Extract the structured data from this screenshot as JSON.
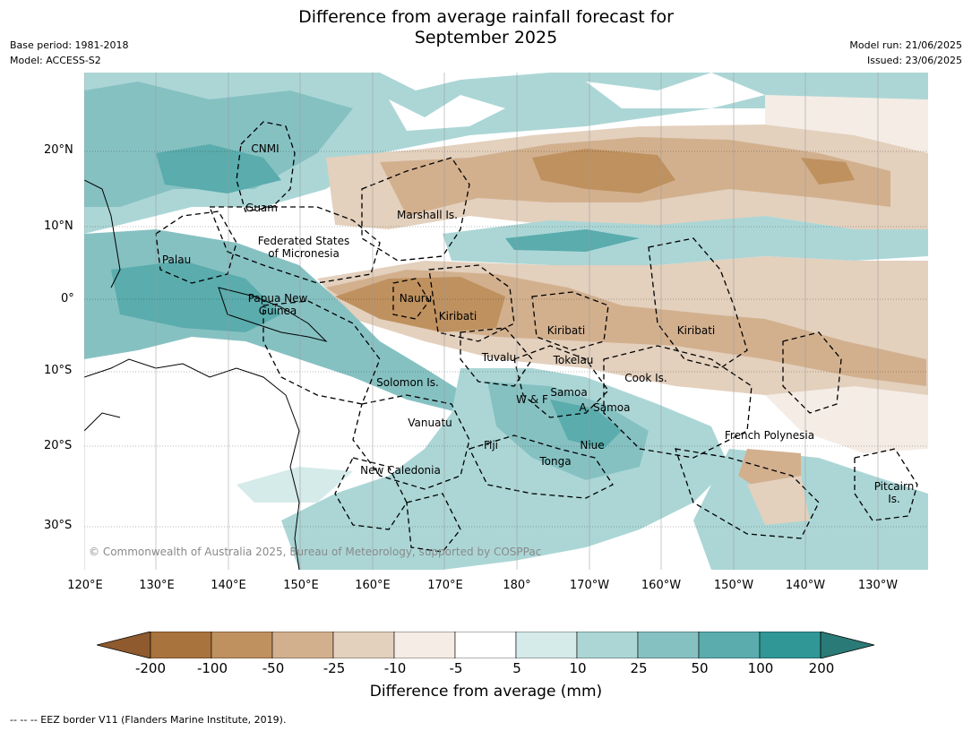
{
  "title": {
    "line1": "Difference from average rainfall forecast for",
    "line2": "September 2025"
  },
  "meta": {
    "base_period": "Base period: 1981-2018",
    "model": "Model: ACCESS-S2",
    "model_run": "Model run: 21/06/2025",
    "issued": "Issued: 23/06/2025"
  },
  "axes": {
    "lat_labels": [
      "20°N",
      "10°N",
      "0°",
      "10°S",
      "20°S",
      "30°S"
    ],
    "lon_labels": [
      "120°E",
      "130°E",
      "140°E",
      "150°E",
      "160°E",
      "170°E",
      "180°",
      "170°W",
      "160°W",
      "150°W",
      "140°W",
      "130°W"
    ]
  },
  "places": [
    {
      "name": "CNMI"
    },
    {
      "name": "Guam"
    },
    {
      "name": "Marshall Is."
    },
    {
      "name": "Federated States"
    },
    {
      "name": "of Micronesia"
    },
    {
      "name": "Palau"
    },
    {
      "name": "Papua New"
    },
    {
      "name": "Guinea"
    },
    {
      "name": "Nauru"
    },
    {
      "name": "Kiribati"
    },
    {
      "name": "Kiribati"
    },
    {
      "name": "Kiribati"
    },
    {
      "name": "Tuvalu"
    },
    {
      "name": "Tokelau"
    },
    {
      "name": "Solomon Is."
    },
    {
      "name": "Cook Is."
    },
    {
      "name": "W & F"
    },
    {
      "name": "Samoa"
    },
    {
      "name": "A. Samoa"
    },
    {
      "name": "Vanuatu"
    },
    {
      "name": "Fiji"
    },
    {
      "name": "Niue"
    },
    {
      "name": "Tonga"
    },
    {
      "name": "French Polynesia"
    },
    {
      "name": "New Caledonia"
    },
    {
      "name": "Pitcairn"
    },
    {
      "name": "Is."
    }
  ],
  "copyright": "© Commonwealth of Australia 2025, Bureau of Meteorology, supported by COSPPac",
  "colorbar": {
    "ticks": [
      "-200",
      "-100",
      "-50",
      "-25",
      "-10",
      "-5",
      "5",
      "10",
      "25",
      "50",
      "100",
      "200"
    ],
    "colors": [
      "#a8733c",
      "#bf915f",
      "#d2b08e",
      "#e3d0bd",
      "#f4ece5",
      "#ffffff",
      "#d5ebea",
      "#acd6d6",
      "#86c1c2",
      "#5aacad",
      "#319696"
    ],
    "extend_low_color": "#8e5a2e",
    "extend_high_color": "#2a7a77",
    "label": "Difference from average (mm)"
  },
  "footer": "--  --  -- EEZ border V11 (Flanders Marine Institute, 2019)."
}
